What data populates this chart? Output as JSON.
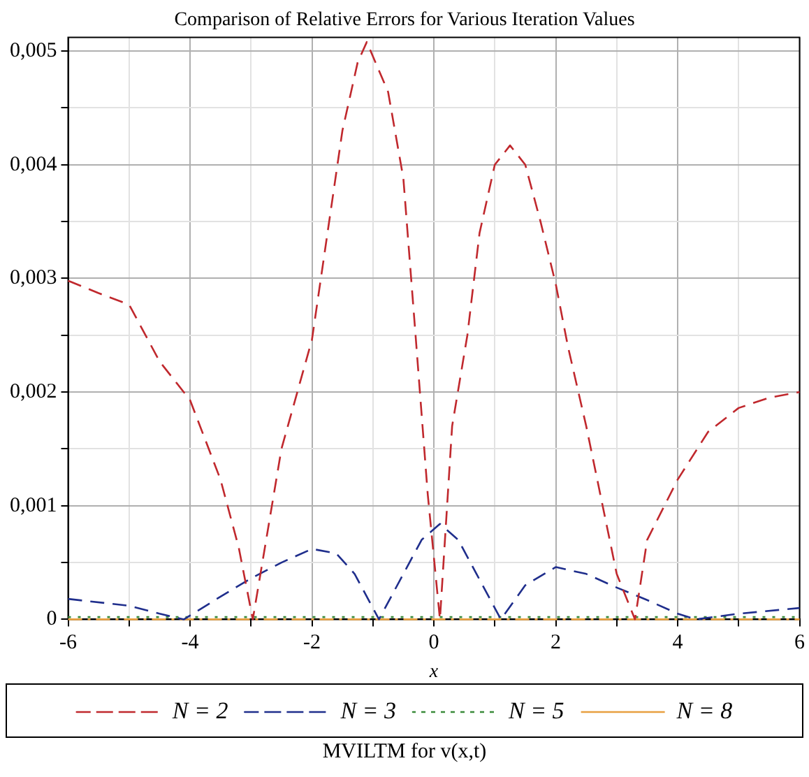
{
  "chart_data": {
    "type": "line",
    "title": "Comparison of Relative Errors for Various Iteration Values",
    "xlabel": "x",
    "annotations": [
      "MVILTM for v(x,t)"
    ],
    "xlim": [
      -6,
      6
    ],
    "ylim": [
      0,
      0.00512
    ],
    "xticks": [
      -6,
      {
        "value": -5,
        "label": null
      },
      -4,
      {
        "value": -3,
        "label": null
      },
      -2,
      {
        "value": -1,
        "label": null
      },
      0,
      {
        "value": 1,
        "label": null
      },
      2,
      {
        "value": 3,
        "label": null
      },
      4,
      {
        "value": 5,
        "label": null
      },
      6
    ],
    "yticks": [
      0,
      {
        "value": 0.0005,
        "label": null
      },
      {
        "value": 0.001,
        "label": "0,001"
      },
      {
        "value": 0.0015,
        "label": null
      },
      {
        "value": 0.002,
        "label": "0,002"
      },
      {
        "value": 0.0025,
        "label": null
      },
      {
        "value": 0.003,
        "label": "0,003"
      },
      {
        "value": 0.0035,
        "label": null
      },
      {
        "value": 0.004,
        "label": "0,004"
      },
      {
        "value": 0.0045,
        "label": null
      },
      {
        "value": 0.005,
        "label": "0,005"
      }
    ],
    "grid": true,
    "legend": "bottom",
    "marker": "none",
    "series": [
      {
        "name": "N = 2",
        "color": "#c0282d",
        "line_style": "dashed",
        "x": [
          -6,
          -5.5,
          -5,
          -4.5,
          -4,
          -3.5,
          -3.2,
          -2.97,
          -2.5,
          -2,
          -1.5,
          -1.25,
          -1.1,
          -0.75,
          -0.5,
          -0.3,
          -0.1,
          0.1,
          0.3,
          0.55,
          0.75,
          1,
          1.25,
          1.5,
          1.75,
          2,
          2.2,
          2.5,
          3,
          3.3,
          3.5,
          4,
          4.5,
          5,
          5.5,
          6
        ],
        "values": [
          0.00298,
          0.00287,
          0.00277,
          0.00227,
          0.00193,
          0.00123,
          0.00063,
          0,
          0.0015,
          0.00246,
          0.0043,
          0.0049,
          0.00508,
          0.00464,
          0.00388,
          0.0025,
          0.0011,
          0,
          0.0017,
          0.0025,
          0.0034,
          0.004,
          0.00417,
          0.004,
          0.0035,
          0.00295,
          0.0024,
          0.0017,
          0.0004,
          0,
          0.0007,
          0.00123,
          0.00165,
          0.00186,
          0.00195,
          0.002
        ]
      },
      {
        "name": "N = 3",
        "color": "#1f2e8c",
        "line_style": "dashed",
        "x": [
          -6,
          -5,
          -4.5,
          -4.1,
          -3.5,
          -3,
          -2.5,
          -2,
          -1.6,
          -1.3,
          -0.9,
          -0.5,
          -0.2,
          0.1,
          0.4,
          0.7,
          1.1,
          1.5,
          2,
          2.5,
          3,
          3.5,
          4,
          4.3,
          5,
          6
        ],
        "values": [
          0.00018,
          0.00012,
          5e-05,
          0,
          0.0002,
          0.00036,
          0.0005,
          0.00062,
          0.00058,
          0.0004,
          0,
          0.0004,
          0.0007,
          0.00084,
          0.0007,
          0.0004,
          0,
          0.0003,
          0.00046,
          0.0004,
          0.00028,
          0.00017,
          5e-05,
          0,
          5e-05,
          0.0001
        ]
      },
      {
        "name": "N = 5",
        "color": "#3a8a3a",
        "line_style": "dotted",
        "x": [
          -6,
          -3,
          0,
          3,
          6
        ],
        "values": [
          2e-05,
          2e-05,
          2e-05,
          2e-05,
          2e-05
        ]
      },
      {
        "name": "N = 8",
        "color": "#e8a040",
        "line_style": "dashdot",
        "x": [
          -6,
          0,
          6
        ],
        "values": [
          0,
          0,
          0
        ]
      }
    ]
  }
}
